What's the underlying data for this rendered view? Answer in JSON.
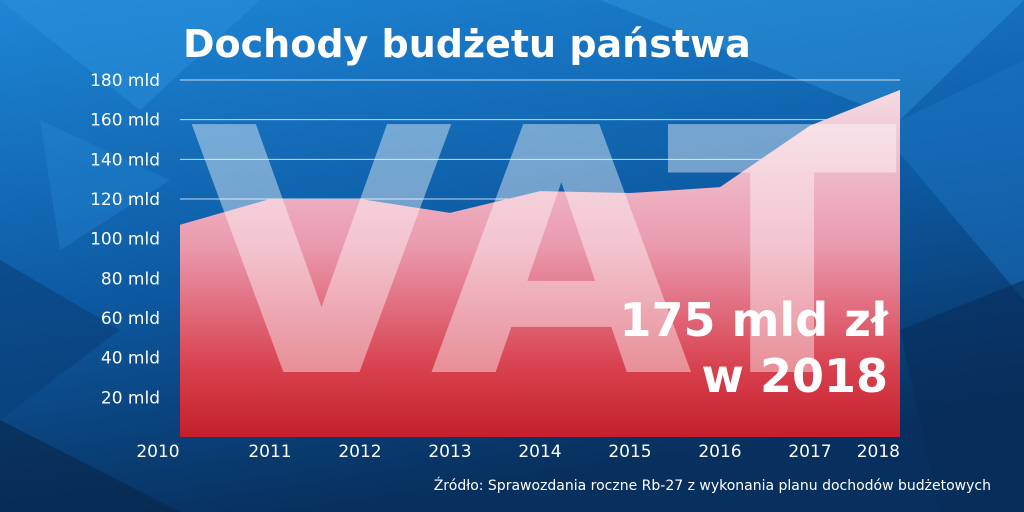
{
  "title": "Dochody budżetu państwa",
  "watermark": "VAT",
  "callout": {
    "line1": "175 mld zł",
    "line2": "w 2018"
  },
  "source": "Źródło: Sprawozdania roczne Rb-27 z wykonania planu dochodów budżetowych",
  "colors": {
    "background": "#0b4f93",
    "background_light": "#1f8ad8",
    "area_top": "#f3d4de",
    "area_bottom": "#d42a35",
    "text": "#ffffff"
  },
  "chart_data": {
    "type": "area",
    "title": "Dochody budżetu państwa",
    "x": [
      2010,
      2011,
      2012,
      2013,
      2014,
      2015,
      2016,
      2017,
      2018
    ],
    "tick_labels_x": [
      "2010",
      "2011",
      "2012",
      "2013",
      "2014",
      "2015",
      "2016",
      "2017",
      "2018"
    ],
    "series": [
      {
        "values": [
          107,
          120,
          120,
          113,
          124,
          123,
          126,
          157,
          175
        ]
      }
    ],
    "y_ticks": [
      20,
      40,
      60,
      80,
      100,
      120,
      140,
      160,
      180
    ],
    "tick_labels_y": [
      "20 mld",
      "40 mld",
      "60 mld",
      "80 mld",
      "100 mld",
      "120 mld",
      "140 mld",
      "160 mld",
      "180 mld"
    ],
    "ylim": [
      0,
      180
    ],
    "xlim": [
      2010,
      2018
    ],
    "grid": "horizontal",
    "legend": "none"
  }
}
